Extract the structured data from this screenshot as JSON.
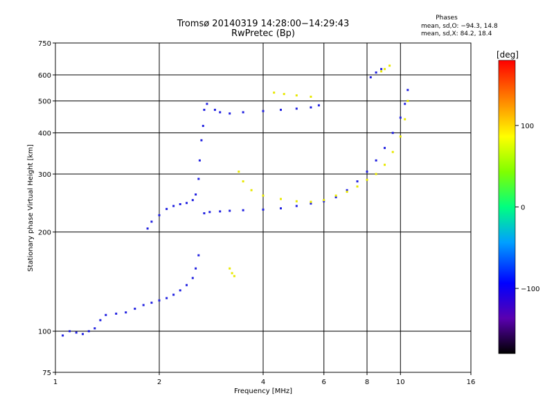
{
  "header": {
    "title_line1": "Tromsø 20140319 14:28:00−14:29:43",
    "title_line2": "RwPretec (Bp)"
  },
  "phase_stats": {
    "title": "Phases",
    "o_mode": "mean, sd,O: −94.3, 14.8",
    "x_mode": "mean, sd,X:  84.2, 18.4"
  },
  "colorbar": {
    "unit_label": "[deg]",
    "ticks": [
      {
        "value": 100,
        "label": "100"
      },
      {
        "value": 0,
        "label": "0"
      },
      {
        "value": -100,
        "label": "−100"
      }
    ],
    "range": [
      -180,
      180
    ]
  },
  "chart_data": {
    "type": "scatter",
    "xlabel": "Frequency [MHz]",
    "ylabel": "Stationary phase Virtual Height [km]",
    "xscale": "log",
    "yscale": "log",
    "xlim": [
      1,
      16
    ],
    "ylim": [
      75,
      750
    ],
    "xticks": [
      {
        "value": 1,
        "label": "1"
      },
      {
        "value": 2,
        "label": "2"
      },
      {
        "value": 4,
        "label": "4"
      },
      {
        "value": 6,
        "label": "6"
      },
      {
        "value": 8,
        "label": "8"
      },
      {
        "value": 10,
        "label": "10"
      },
      {
        "value": 16,
        "label": "16"
      }
    ],
    "yticks": [
      {
        "value": 75,
        "label": "75"
      },
      {
        "value": 100,
        "label": "100"
      },
      {
        "value": 200,
        "label": "200"
      },
      {
        "value": 300,
        "label": "300"
      },
      {
        "value": 400,
        "label": "400"
      },
      {
        "value": 500,
        "label": "500"
      },
      {
        "value": 600,
        "label": "600"
      },
      {
        "value": 750,
        "label": "750"
      }
    ],
    "grid": true,
    "color_by": "phase",
    "traces": [
      {
        "mode": "O",
        "phase": -100,
        "points": [
          [
            1.05,
            97
          ],
          [
            1.1,
            100
          ],
          [
            1.15,
            99
          ],
          [
            1.2,
            98
          ],
          [
            1.25,
            100
          ],
          [
            1.3,
            102
          ],
          [
            1.35,
            108
          ],
          [
            1.4,
            112
          ],
          [
            1.5,
            113
          ],
          [
            1.6,
            114
          ],
          [
            1.7,
            117
          ],
          [
            1.8,
            120
          ],
          [
            1.9,
            122
          ],
          [
            2.0,
            124
          ],
          [
            2.1,
            126
          ],
          [
            2.2,
            129
          ],
          [
            2.3,
            133
          ],
          [
            2.4,
            138
          ],
          [
            2.5,
            145
          ],
          [
            2.55,
            155
          ],
          [
            2.6,
            170
          ]
        ]
      },
      {
        "mode": "O",
        "phase": -100,
        "points": [
          [
            1.85,
            205
          ],
          [
            1.9,
            215
          ],
          [
            2.0,
            225
          ],
          [
            2.1,
            235
          ],
          [
            2.2,
            240
          ],
          [
            2.3,
            243
          ],
          [
            2.4,
            245
          ],
          [
            2.5,
            250
          ],
          [
            2.55,
            260
          ],
          [
            2.6,
            290
          ],
          [
            2.62,
            330
          ],
          [
            2.65,
            380
          ],
          [
            2.68,
            420
          ],
          [
            2.7,
            470
          ],
          [
            2.75,
            490
          ]
        ]
      },
      {
        "mode": "O",
        "phase": -100,
        "points": [
          [
            2.7,
            228
          ],
          [
            2.8,
            230
          ],
          [
            3.0,
            231
          ],
          [
            3.2,
            232
          ],
          [
            3.5,
            233
          ],
          [
            4.0,
            234
          ],
          [
            4.5,
            236
          ],
          [
            5.0,
            240
          ],
          [
            5.5,
            244
          ],
          [
            6.0,
            248
          ],
          [
            6.5,
            255
          ],
          [
            7.0,
            268
          ],
          [
            7.5,
            285
          ],
          [
            8.0,
            305
          ],
          [
            8.5,
            330
          ],
          [
            9.0,
            360
          ],
          [
            9.5,
            400
          ],
          [
            10.0,
            445
          ],
          [
            10.3,
            490
          ],
          [
            10.5,
            540
          ]
        ]
      },
      {
        "mode": "O",
        "phase": -100,
        "points": [
          [
            2.9,
            470
          ],
          [
            3.0,
            462
          ],
          [
            3.2,
            458
          ],
          [
            3.5,
            462
          ],
          [
            4.0,
            466
          ],
          [
            4.5,
            470
          ],
          [
            5.0,
            474
          ],
          [
            5.5,
            478
          ],
          [
            5.8,
            485
          ]
        ]
      },
      {
        "mode": "O",
        "phase": -100,
        "points": [
          [
            8.2,
            590
          ],
          [
            8.5,
            610
          ],
          [
            8.8,
            625
          ]
        ]
      },
      {
        "mode": "X",
        "phase": 100,
        "points": [
          [
            3.4,
            305
          ],
          [
            3.5,
            285
          ],
          [
            3.7,
            268
          ],
          [
            4.0,
            258
          ],
          [
            4.5,
            252
          ],
          [
            5.0,
            248
          ],
          [
            5.5,
            247
          ],
          [
            6.0,
            250
          ],
          [
            6.5,
            258
          ],
          [
            7.0,
            265
          ],
          [
            7.5,
            275
          ],
          [
            8.0,
            288
          ],
          [
            8.5,
            300
          ],
          [
            9.0,
            320
          ],
          [
            9.5,
            350
          ],
          [
            10.0,
            390
          ],
          [
            10.3,
            440
          ],
          [
            10.5,
            500
          ]
        ]
      },
      {
        "mode": "X",
        "phase": 100,
        "points": [
          [
            3.2,
            155
          ],
          [
            3.25,
            150
          ],
          [
            3.3,
            147
          ]
        ]
      },
      {
        "mode": "X",
        "phase": 100,
        "points": [
          [
            8.8,
            615
          ],
          [
            9.0,
            625
          ],
          [
            9.3,
            640
          ]
        ]
      },
      {
        "mode": "X",
        "phase": 100,
        "points": [
          [
            4.3,
            530
          ],
          [
            4.6,
            525
          ],
          [
            5.0,
            520
          ],
          [
            5.5,
            515
          ]
        ]
      }
    ]
  }
}
